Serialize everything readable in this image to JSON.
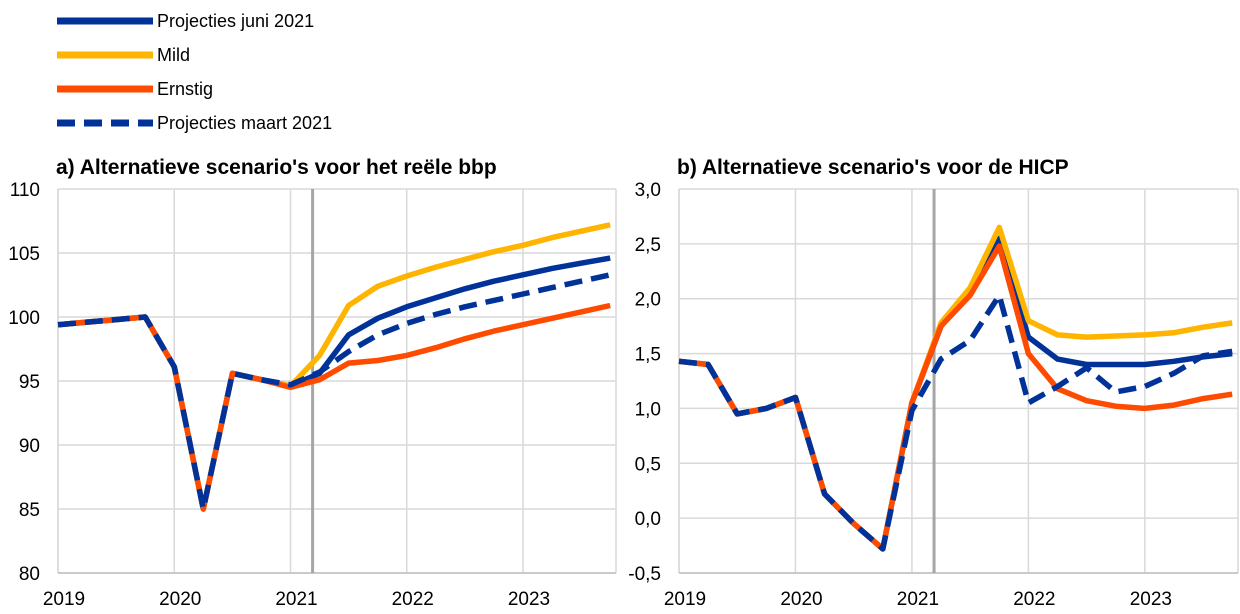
{
  "chart_data": [
    {
      "type": "line",
      "title": "a) Alternatieve scenario's voor het reële bbp",
      "x": [
        "2019Q1",
        "2019Q2",
        "2019Q3",
        "2019Q4",
        "2020Q1",
        "2020Q2",
        "2020Q3",
        "2020Q4",
        "2021Q1",
        "2021Q2",
        "2021Q3",
        "2021Q4",
        "2022Q1",
        "2022Q2",
        "2022Q3",
        "2022Q4",
        "2023Q1",
        "2023Q2",
        "2023Q3",
        "2023Q4"
      ],
      "xticks": [
        "2019",
        "2020",
        "2021",
        "2022",
        "2023"
      ],
      "yticks": [
        "80",
        "85",
        "90",
        "95",
        "100",
        "105",
        "110"
      ],
      "ylim": [
        80,
        110
      ],
      "cutoff": "2021Q2",
      "series": [
        {
          "name": "Projecties juni 2021",
          "values": [
            99.4,
            99.6,
            99.8,
            100.0,
            96.1,
            85.0,
            95.6,
            95.1,
            94.6,
            95.6,
            98.6,
            99.9,
            100.8,
            101.5,
            102.2,
            102.8,
            103.3,
            103.8,
            104.2,
            104.6
          ]
        },
        {
          "name": "Mild",
          "values": [
            99.4,
            99.6,
            99.8,
            100.0,
            96.1,
            85.0,
            95.6,
            95.1,
            94.6,
            97.0,
            100.9,
            102.4,
            103.2,
            103.9,
            104.5,
            105.1,
            105.6,
            106.2,
            106.7,
            107.2
          ]
        },
        {
          "name": "Ernstig",
          "values": [
            99.4,
            99.6,
            99.8,
            100.0,
            96.1,
            85.0,
            95.6,
            95.1,
            94.5,
            95.1,
            96.4,
            96.6,
            97.0,
            97.6,
            98.3,
            98.9,
            99.4,
            99.9,
            100.4,
            100.9
          ]
        },
        {
          "name": "Projecties maart 2021",
          "values": [
            99.4,
            99.6,
            99.8,
            100.0,
            96.1,
            85.0,
            95.6,
            95.1,
            94.7,
            95.7,
            97.3,
            98.6,
            99.5,
            100.2,
            100.8,
            101.3,
            101.8,
            102.3,
            102.8,
            103.3
          ]
        }
      ]
    },
    {
      "type": "line",
      "title": "b) Alternatieve scenario's voor de HICP",
      "x": [
        "2019Q1",
        "2019Q2",
        "2019Q3",
        "2019Q4",
        "2020Q1",
        "2020Q2",
        "2020Q3",
        "2020Q4",
        "2021Q1",
        "2021Q2",
        "2021Q3",
        "2021Q4",
        "2022Q1",
        "2022Q2",
        "2022Q3",
        "2022Q4",
        "2023Q1",
        "2023Q2",
        "2023Q3",
        "2023Q4"
      ],
      "xticks": [
        "2019",
        "2020",
        "2021",
        "2022",
        "2023"
      ],
      "yticks": [
        "-0,5",
        "0,0",
        "0,5",
        "1,0",
        "1,5",
        "2,0",
        "2,5",
        "3,0"
      ],
      "ylim": [
        -0.5,
        3.0
      ],
      "cutoff": "2021Q2",
      "series": [
        {
          "name": "Projecties juni 2021",
          "values": [
            1.43,
            1.4,
            0.95,
            1.0,
            1.1,
            0.22,
            -0.05,
            -0.28,
            1.05,
            1.75,
            2.05,
            2.55,
            1.65,
            1.45,
            1.4,
            1.4,
            1.4,
            1.43,
            1.47,
            1.5
          ]
        },
        {
          "name": "Mild",
          "values": [
            1.43,
            1.4,
            0.95,
            1.0,
            1.1,
            0.22,
            -0.05,
            -0.28,
            1.05,
            1.78,
            2.1,
            2.65,
            1.8,
            1.67,
            1.65,
            1.66,
            1.67,
            1.69,
            1.74,
            1.78
          ]
        },
        {
          "name": "Ernstig",
          "values": [
            1.43,
            1.4,
            0.95,
            1.0,
            1.1,
            0.22,
            -0.05,
            -0.28,
            1.05,
            1.75,
            2.03,
            2.48,
            1.5,
            1.18,
            1.07,
            1.02,
            1.0,
            1.03,
            1.09,
            1.13
          ]
        },
        {
          "name": "Projecties maart 2021",
          "values": [
            1.43,
            1.4,
            0.95,
            1.0,
            1.1,
            0.22,
            -0.05,
            -0.28,
            0.98,
            1.45,
            1.62,
            2.03,
            1.05,
            1.2,
            1.37,
            1.15,
            1.2,
            1.32,
            1.48,
            1.52
          ]
        }
      ]
    }
  ],
  "legend": [
    {
      "label": "Projecties juni 2021",
      "color": "#003299",
      "dash": false
    },
    {
      "label": "Mild",
      "color": "#FFB400",
      "dash": false
    },
    {
      "label": "Ernstig",
      "color": "#FF4B00",
      "dash": false
    },
    {
      "label": "Projecties maart 2021",
      "color": "#003299",
      "dash": true
    }
  ],
  "colors": {
    "june": "#003299",
    "mild": "#FFB400",
    "severe": "#FF4B00",
    "march": "#003299",
    "cutoff": "#A6A6A6",
    "grid": "#D9D9D9"
  }
}
